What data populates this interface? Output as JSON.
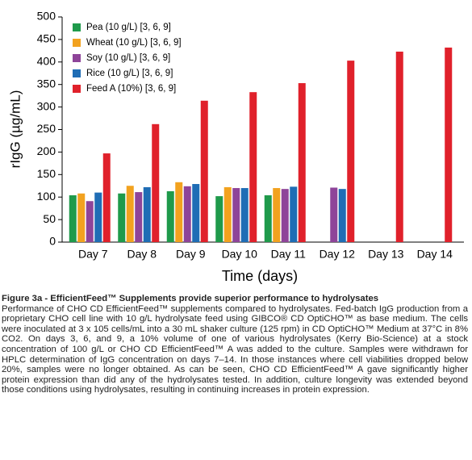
{
  "chart_data": {
    "type": "bar",
    "y_label": "rIgG (µg/mL)",
    "x_label": "Time (days)",
    "categories": [
      "Day 7",
      "Day 8",
      "Day 9",
      "Day 10",
      "Day 11",
      "Day 12",
      "Day 13",
      "Day 14"
    ],
    "series": [
      {
        "name": "Pea (10 g/L) [3, 6, 9]",
        "color": "#1f9a4b",
        "values": [
          104,
          108,
          113,
          102,
          104,
          null,
          null,
          null
        ]
      },
      {
        "name": "Wheat (10 g/L) [3, 6, 9]",
        "color": "#f2a21f",
        "values": [
          108,
          125,
          133,
          122,
          120,
          null,
          null,
          null
        ]
      },
      {
        "name": "Soy (10 g/L) [3, 6, 9]",
        "color": "#8e4499",
        "values": [
          91,
          111,
          124,
          120,
          118,
          121,
          null,
          null
        ]
      },
      {
        "name": "Rice (10 g/L) [3, 6, 9]",
        "color": "#1f6db5",
        "values": [
          110,
          122,
          129,
          120,
          123,
          118,
          null,
          null
        ]
      },
      {
        "name": "Feed A (10%) [3, 6, 9]",
        "color": "#e0212b",
        "values": [
          197,
          262,
          314,
          333,
          353,
          403,
          423,
          432
        ]
      }
    ],
    "ylim": [
      0,
      500
    ],
    "yticks": [
      0,
      50,
      100,
      150,
      200,
      250,
      300,
      350,
      400,
      450,
      500
    ],
    "legend": "top-left"
  },
  "caption": {
    "title": "Figure 3a - EfficientFeed™ Supplements provide superior performance to hydrolysates",
    "text": "Performance of CHO CD EfficientFeed™ supplements compared to hydrolysates. Fed-batch IgG production from a proprietary CHO cell line with 10 g/L hydrolysate feed using GIBCO® CD OptiCHO™ as base medium. The cells were inoculated at 3 x 105 cells/mL into a 30 mL shaker culture (125 rpm) in CD OptiCHO™ Medium at 37°C in 8% CO2. On days 3, 6, and 9, a 10% volume of one of various hydrolysates (Kerry Bio-Science) at a stock concentration of 100 g/L or CHO CD EfficientFeed™ A was added to the culture. Samples were withdrawn for HPLC determination of IgG concentration on days 7–14. In those instances where cell viabilities dropped below 20%, samples were no longer obtained. As can be seen, CHO CD EfficientFeed™ A gave significantly higher protein expression than did any of the hydrolysates tested. In addition, culture longevity was extended beyond those conditions using hydrolysates, resulting in continuing increases in protein expression."
  }
}
